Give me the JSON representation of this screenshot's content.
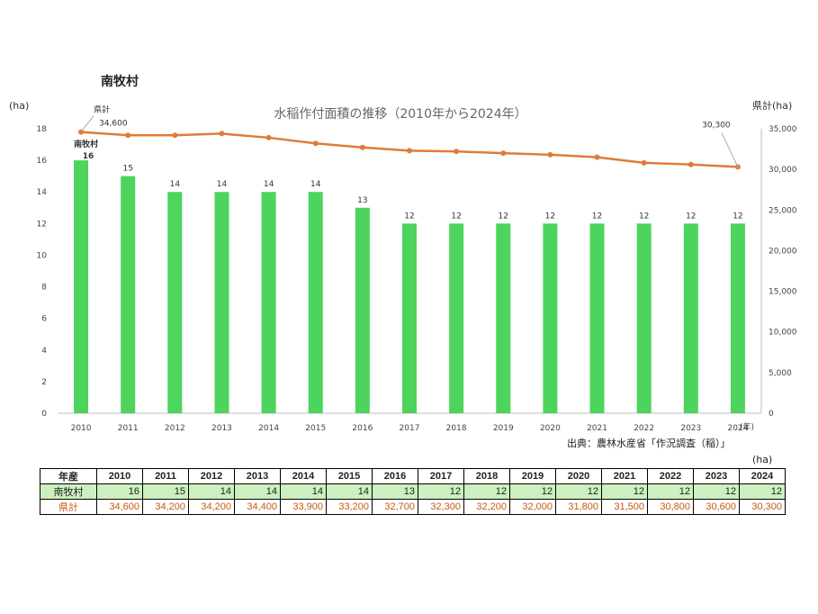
{
  "page_title": "南牧村",
  "source_note": "出典：農林水産省「作況調査（稲）」",
  "table_unit": "(ha)",
  "colors": {
    "bar": "#4cd45c",
    "line": "#e07b39",
    "axis": "#bfbfbf",
    "table_row_bg": "#ccf0c0",
    "table_ken_text": "#c55a11"
  },
  "chart_data": {
    "type": "bar+line",
    "title": "水稲作付面積の推移（2010年から2024年）",
    "categories": [
      "2010",
      "2011",
      "2012",
      "2013",
      "2014",
      "2015",
      "2016",
      "2017",
      "2018",
      "2019",
      "2020",
      "2021",
      "2022",
      "2023",
      "2024"
    ],
    "x_unit": "(年)",
    "series": [
      {
        "name": "南牧村",
        "axis": "left",
        "values": [
          16,
          15,
          14,
          14,
          14,
          14,
          13,
          12,
          12,
          12,
          12,
          12,
          12,
          12,
          12
        ]
      },
      {
        "name": "県計",
        "axis": "right",
        "values": [
          34600,
          34200,
          34200,
          34400,
          33900,
          33200,
          32700,
          32300,
          32200,
          32000,
          31800,
          31500,
          30800,
          30600,
          30300
        ]
      }
    ],
    "left_axis": {
      "unit": "(ha)",
      "ylim": [
        0,
        18
      ],
      "ticks": [
        "0",
        "2",
        "4",
        "6",
        "8",
        "10",
        "12",
        "14",
        "16",
        "18"
      ]
    },
    "right_axis": {
      "unit": "県計(ha)",
      "ylim": [
        0,
        35000
      ],
      "ticks": [
        "0",
        "5,000",
        "10,000",
        "15,000",
        "20,000",
        "25,000",
        "30,000",
        "35,000"
      ]
    },
    "annotations": {
      "ken_first_label": "県計",
      "ken_first_value": "34,600",
      "ken_last_value": "30,300",
      "nm_first_label": "南牧村"
    }
  },
  "table": {
    "header_label": "年産",
    "years": [
      "2010",
      "2011",
      "2012",
      "2013",
      "2014",
      "2015",
      "2016",
      "2017",
      "2018",
      "2019",
      "2020",
      "2021",
      "2022",
      "2023",
      "2024"
    ],
    "rows": [
      {
        "label": "南牧村",
        "values": [
          "16",
          "15",
          "14",
          "14",
          "14",
          "14",
          "13",
          "12",
          "12",
          "12",
          "12",
          "12",
          "12",
          "12",
          "12"
        ]
      },
      {
        "label": "県計",
        "values": [
          "34,600",
          "34,200",
          "34,200",
          "34,400",
          "33,900",
          "33,200",
          "32,700",
          "32,300",
          "32,200",
          "32,000",
          "31,800",
          "31,500",
          "30,800",
          "30,600",
          "30,300"
        ]
      }
    ]
  }
}
